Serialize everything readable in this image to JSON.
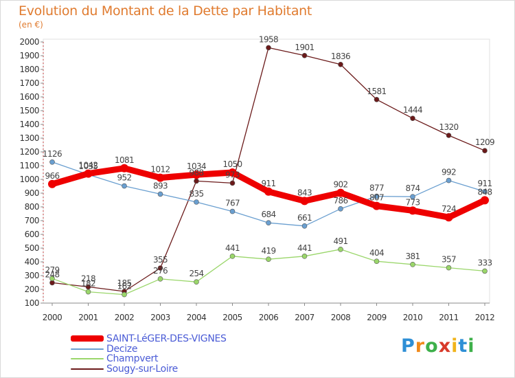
{
  "header": {
    "title": "Evolution du Montant de la Dette par Habitant",
    "unit": "(en €)"
  },
  "chart_data": {
    "type": "line",
    "title": "Evolution du Montant de la Dette par Habitant",
    "ylabel": "(en €)",
    "xlabel": "",
    "ylim": [
      100,
      2000
    ],
    "grid": false,
    "legend_position": "bottom-left",
    "categories": [
      "2000",
      "2001",
      "2002",
      "2003",
      "2004",
      "2005",
      "2006",
      "2007",
      "2008",
      "2009",
      "2010",
      "2011",
      "2012"
    ],
    "yticks": [
      100,
      200,
      300,
      400,
      500,
      600,
      700,
      800,
      900,
      1000,
      1100,
      1200,
      1300,
      1400,
      1500,
      1600,
      1700,
      1800,
      1900,
      2000
    ],
    "series": [
      {
        "name": "Sougy-sur-Loire",
        "color": "#6b1a1a",
        "values": [
          248,
          218,
          185,
          355,
          988,
          973,
          1958,
          1901,
          1836,
          1581,
          1444,
          1320,
          1209
        ]
      },
      {
        "name": "Champvert",
        "color": "#9ad66a",
        "values": [
          279,
          182,
          162,
          276,
          254,
          441,
          419,
          441,
          491,
          404,
          381,
          357,
          333
        ]
      },
      {
        "name": "Decize",
        "color": "#6a9fd0",
        "values": [
          1126,
          1035,
          952,
          893,
          835,
          767,
          684,
          661,
          786,
          877,
          874,
          992,
          911
        ]
      },
      {
        "name": "SAINT-LéGER-DES-VIGNES",
        "color": "#ee0000",
        "values": [
          966,
          1042,
          1081,
          1012,
          1034,
          1050,
          911,
          843,
          902,
          807,
          773,
          724,
          848
        ]
      }
    ]
  },
  "legend": {
    "items": [
      {
        "label": "SAINT-LéGER-DES-VIGNES",
        "color": "#ee0000"
      },
      {
        "label": "Decize",
        "color": "#6a9fd0"
      },
      {
        "label": "Champvert",
        "color": "#9ad66a"
      },
      {
        "label": "Sougy-sur-Loire",
        "color": "#6b1a1a"
      }
    ]
  },
  "logo": {
    "letters": [
      "P",
      "r",
      "o",
      "x",
      "i",
      "t",
      "i"
    ],
    "colors": [
      "#2e8fd6",
      "#f08a1c",
      "#3db04a",
      "#d83a2a",
      "#f0b41c",
      "#2e8fd6",
      "#3db04a"
    ]
  }
}
